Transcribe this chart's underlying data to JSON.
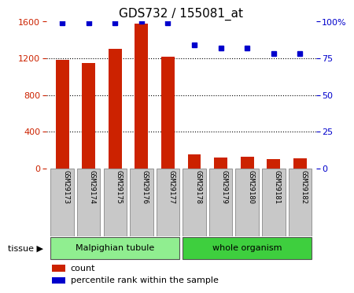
{
  "title": "GDS732 / 155081_at",
  "samples": [
    "GSM29173",
    "GSM29174",
    "GSM29175",
    "GSM29176",
    "GSM29177",
    "GSM29178",
    "GSM29179",
    "GSM29180",
    "GSM29181",
    "GSM29182"
  ],
  "counts": [
    1180,
    1150,
    1300,
    1580,
    1220,
    150,
    120,
    130,
    100,
    110
  ],
  "percentiles": [
    99,
    99,
    99,
    100,
    99,
    84,
    82,
    82,
    78,
    78
  ],
  "tissue_groups": [
    {
      "label": "Malpighian tubule",
      "start": 0,
      "end": 5,
      "color": "#90ee90"
    },
    {
      "label": "whole organism",
      "start": 5,
      "end": 10,
      "color": "#3ecf3e"
    }
  ],
  "bar_color": "#cc2200",
  "dot_color": "#0000cc",
  "left_ylim": [
    0,
    1600
  ],
  "right_ylim": [
    0,
    100
  ],
  "left_yticks": [
    0,
    400,
    800,
    1200,
    1600
  ],
  "right_yticks": [
    0,
    25,
    50,
    75,
    100
  ],
  "right_yticklabels": [
    "0",
    "25",
    "50",
    "75",
    "100%"
  ],
  "left_tick_color": "#cc2200",
  "right_tick_color": "#0000cc",
  "grid_color": "black",
  "legend_count_label": "count",
  "legend_pct_label": "percentile rank within the sample",
  "bar_width": 0.5,
  "tissue_label": "tissue ▶",
  "xticklabel_bg": "#c8c8c8",
  "xticklabel_border": "#888888"
}
